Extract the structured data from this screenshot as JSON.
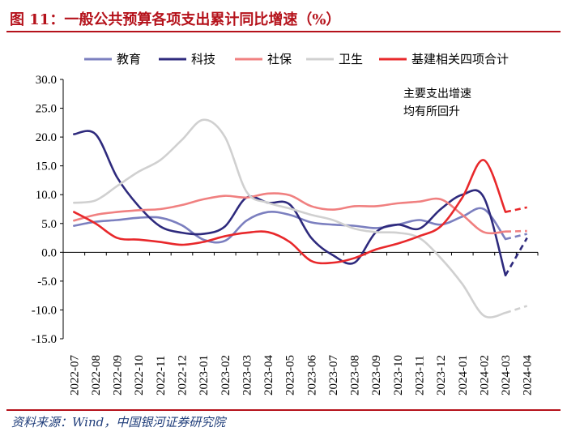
{
  "header": {
    "title": "图 11：一般公共预算各项支出累计同比增速（%）"
  },
  "footer": {
    "source": "资料来源：Wind，中国银河证券研究院"
  },
  "chart_data": {
    "type": "line",
    "title": "一般公共预算各项支出累计同比增速（%）",
    "xlabel": "",
    "ylabel": "",
    "ylim": [
      -15,
      30
    ],
    "yticks": [
      30.0,
      25.0,
      20.0,
      15.0,
      10.0,
      5.0,
      0.0,
      -5.0,
      -10.0,
      -15.0
    ],
    "ytick_labels": [
      "30.0",
      "25.0",
      "20.0",
      "15.0",
      "10.0",
      "5.0",
      "0.0",
      "-5.0",
      "-10.0",
      "-15.0"
    ],
    "grid": false,
    "legend_position": "top",
    "categories": [
      "2022-07",
      "2022-08",
      "2022-09",
      "2022-10",
      "2022-11",
      "2022-12",
      "2023-01",
      "2023-02",
      "2023-03",
      "2023-04",
      "2023-05",
      "2023-06",
      "2023-07",
      "2023-08",
      "2023-09",
      "2023-10",
      "2023-11",
      "2023-12",
      "2024-01",
      "2024-02",
      "2024-03",
      "2024-04"
    ],
    "series": [
      {
        "name": "教育",
        "color": "#7b7fbf",
        "values": [
          4.6,
          5.3,
          5.6,
          6.0,
          6.0,
          4.7,
          2.2,
          2.0,
          5.5,
          7.0,
          6.5,
          5.2,
          4.8,
          4.6,
          4.2,
          4.8,
          5.6,
          4.8,
          6.2,
          7.5,
          2.3,
          3.2
        ]
      },
      {
        "name": "科技",
        "color": "#2e2a7d",
        "values": [
          20.5,
          20.5,
          13.0,
          8.0,
          4.5,
          3.4,
          3.2,
          4.5,
          9.5,
          8.6,
          8.3,
          2.5,
          -0.5,
          -1.8,
          3.5,
          4.8,
          4.1,
          7.5,
          10.0,
          9.5,
          -4.0,
          2.5
        ]
      },
      {
        "name": "社保",
        "color": "#f08080",
        "values": [
          5.5,
          6.5,
          7.0,
          7.3,
          7.5,
          8.2,
          9.2,
          9.8,
          9.5,
          10.2,
          9.9,
          8.0,
          7.4,
          8.0,
          8.0,
          8.5,
          8.8,
          9.2,
          6.5,
          3.5,
          3.6,
          3.7
        ]
      },
      {
        "name": "卫生",
        "color": "#d0d0d0",
        "values": [
          8.6,
          9.0,
          11.5,
          14.0,
          16.0,
          19.5,
          23.0,
          20.0,
          10.5,
          8.6,
          7.6,
          6.5,
          5.6,
          4.1,
          3.5,
          3.4,
          2.5,
          -1.0,
          -5.5,
          -11.0,
          -10.5,
          -9.3
        ]
      },
      {
        "name": "基建相关四项合计",
        "color": "#e8282b",
        "values": [
          7.0,
          5.0,
          2.5,
          2.2,
          1.8,
          1.3,
          1.8,
          2.8,
          3.4,
          3.5,
          1.8,
          -1.5,
          -1.8,
          -1.0,
          0.5,
          1.5,
          2.8,
          4.5,
          9.5,
          16.0,
          7.0,
          7.8
        ]
      }
    ],
    "dashed_segment_categories": [
      "2024-03",
      "2024-04"
    ],
    "annotation": [
      "主要支出增速",
      "均有所回升"
    ]
  }
}
